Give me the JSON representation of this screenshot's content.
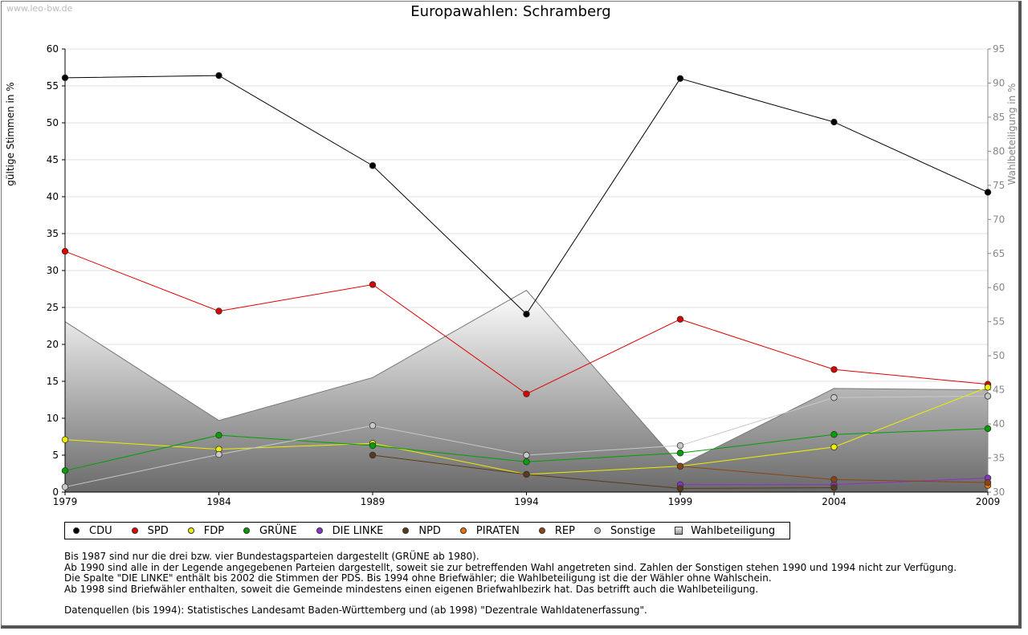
{
  "watermark": "www.leo-bw.de",
  "title": "Europawahlen: Schramberg",
  "chart_data": {
    "type": "line",
    "title": "Europawahlen: Schramberg",
    "x": [
      1979,
      1984,
      1989,
      1994,
      1999,
      2004,
      2009
    ],
    "xticks": [
      "1979",
      "1984",
      "1989",
      "1994",
      "1999",
      "2004",
      "2009"
    ],
    "ylabel": "gültige Stimmen in %",
    "ylim": [
      0,
      60
    ],
    "yticks": [
      "0",
      "5",
      "10",
      "15",
      "20",
      "25",
      "30",
      "35",
      "40",
      "45",
      "50",
      "55",
      "60"
    ],
    "y2label": "Wahlbeteiligung in %",
    "y2lim": [
      30,
      95
    ],
    "y2ticks": [
      "30",
      "35",
      "40",
      "45",
      "50",
      "55",
      "60",
      "65",
      "70",
      "75",
      "80",
      "85",
      "90",
      "95"
    ],
    "grid": true,
    "series": [
      {
        "name": "CDU",
        "color": "#000000",
        "values": [
          56.1,
          56.4,
          44.2,
          24.1,
          56.0,
          50.1,
          40.6
        ]
      },
      {
        "name": "SPD",
        "color": "#dd0000",
        "values": [
          32.6,
          24.5,
          28.1,
          13.3,
          23.4,
          16.6,
          14.6
        ]
      },
      {
        "name": "FDP",
        "color": "#eeee00",
        "values": [
          7.1,
          5.8,
          6.6,
          2.4,
          3.5,
          6.1,
          14.2
        ]
      },
      {
        "name": "GRÜNE",
        "color": "#00a000",
        "values": [
          2.9,
          7.7,
          6.3,
          4.1,
          5.3,
          7.8,
          8.6
        ]
      },
      {
        "name": "DIE LINKE",
        "color": "#8833cc",
        "values": [
          null,
          null,
          null,
          null,
          1.0,
          1.0,
          1.9
        ]
      },
      {
        "name": "NPD",
        "color": "#5a3a1a",
        "values": [
          null,
          null,
          5.0,
          2.4,
          0.5,
          0.6,
          null
        ]
      },
      {
        "name": "PIRATEN",
        "color": "#f07000",
        "values": [
          null,
          null,
          null,
          null,
          null,
          null,
          0.9
        ]
      },
      {
        "name": "REP",
        "color": "#8b4513",
        "values": [
          null,
          null,
          null,
          null,
          3.5,
          1.7,
          1.3
        ]
      },
      {
        "name": "Sonstige",
        "color": "#c8c8c8",
        "values": [
          0.7,
          5.1,
          9.0,
          5.0,
          6.3,
          12.8,
          13.0
        ]
      }
    ],
    "turnout": {
      "name": "Wahlbeteiligung",
      "values": [
        55.0,
        40.5,
        46.8,
        59.6,
        33.9,
        45.2,
        45.0
      ]
    }
  },
  "legend": [
    "CDU",
    "SPD",
    "FDP",
    "GRÜNE",
    "DIE LINKE",
    "NPD",
    "PIRATEN",
    "REP",
    "Sonstige",
    "Wahlbeteiligung"
  ],
  "notes": {
    "line1": "Bis 1987 sind nur die drei bzw. vier Bundestagsparteien dargestellt (GRÜNE ab 1980).",
    "line2": "Ab 1990 sind alle in der Legende angegebenen Parteien dargestellt, soweit sie zur betreffenden Wahl angetreten sind. Zahlen der Sonstigen stehen 1990 und 1994 nicht zur Verfügung.",
    "line3": "Die Spalte \"DIE LINKE\" enthält bis 2002 die Stimmen der PDS. Bis 1994 ohne Briefwähler; die Wahlbeteiligung ist die der Wähler ohne Wahlschein.",
    "line4": "Ab 1998 sind Briefwähler enthalten, soweit die Gemeinde mindestens einen eigenen Briefwahlbezirk hat. Das betrifft auch die Wahlbeteiligung.",
    "line5": "Datenquellen (bis 1994): Statistisches Landesamt Baden-Württemberg und (ab 1998) \"Dezentrale Wahldatenerfassung\"."
  }
}
